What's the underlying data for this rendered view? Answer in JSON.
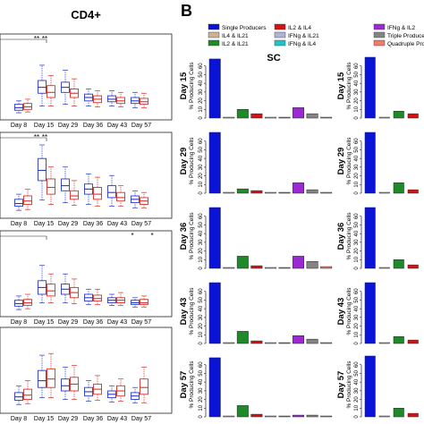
{
  "figure": {
    "panel_a_title": "CD4+",
    "panel_b_letter": "B",
    "panel_b_title": "SC",
    "ylabel": "% Producing Cells"
  },
  "legend": [
    {
      "label": "Single Producers",
      "color": "#0a14d8"
    },
    {
      "label": "IL4 & IL21",
      "color": "#c8b495"
    },
    {
      "label": "IL2 & IL21",
      "color": "#1f8a2a"
    },
    {
      "label": "IL2 & IL4",
      "color": "#d41414"
    },
    {
      "label": "IFNg & IL21",
      "color": "#aab5d8"
    },
    {
      "label": "IFNg & IL4",
      "color": "#22c2c8"
    },
    {
      "label": "IFNg & IL2",
      "color": "#9a2ad2"
    },
    {
      "label": "Triple Producers",
      "color": "#848484"
    },
    {
      "label": "Quadruple Producers",
      "color": "#f07c70"
    }
  ],
  "colors": {
    "blue_box": "#2a36c8",
    "red_box": "#d8302a"
  },
  "chart_data": [
    {
      "type": "box",
      "panel": "A",
      "title": "CD4+",
      "categories": [
        "Day 8",
        "Day 15",
        "Day 29",
        "Day 36",
        "Day 43",
        "Day 57"
      ],
      "rows": [
        {
          "significance": [
            "**",
            "**"
          ],
          "blue": [
            [
              0.2,
              0.5,
              0.8,
              1.2,
              1.6
            ],
            [
              1.0,
              2.5,
              3.2,
              4.0,
              5.8
            ],
            [
              1.2,
              2.6,
              3.2,
              3.8,
              5.2
            ],
            [
              1.0,
              1.6,
              2.0,
              2.4,
              3.0
            ],
            [
              1.0,
              1.5,
              1.8,
              2.2,
              2.8
            ],
            [
              0.8,
              1.3,
              1.6,
              2.0,
              2.6
            ]
          ],
          "red": [
            [
              0.3,
              0.6,
              0.9,
              1.3,
              1.8
            ],
            [
              1.0,
              2.0,
              2.6,
              3.4,
              4.6
            ],
            [
              1.0,
              2.0,
              2.5,
              3.0,
              4.2
            ],
            [
              0.9,
              1.4,
              1.8,
              2.2,
              2.8
            ],
            [
              0.9,
              1.3,
              1.6,
              2.0,
              2.6
            ],
            [
              0.8,
              1.2,
              1.5,
              1.9,
              2.5
            ]
          ]
        },
        {
          "significance": [
            "**",
            "**"
          ],
          "blue": [
            [
              0.3,
              0.8,
              1.1,
              1.6,
              2.2
            ],
            [
              1.5,
              3.8,
              5.0,
              6.4,
              8.0
            ],
            [
              1.2,
              2.6,
              3.2,
              4.0,
              5.4
            ],
            [
              1.0,
              2.2,
              2.8,
              3.4,
              4.6
            ],
            [
              0.8,
              1.8,
              2.4,
              3.2,
              4.4
            ],
            [
              0.6,
              1.2,
              1.6,
              2.0,
              2.6
            ]
          ],
          "red": [
            [
              0.4,
              1.0,
              1.4,
              2.0,
              2.8
            ],
            [
              1.0,
              2.2,
              3.0,
              4.0,
              5.4
            ],
            [
              0.9,
              1.6,
              2.0,
              2.6,
              3.8
            ],
            [
              0.8,
              1.6,
              2.2,
              3.0,
              4.2
            ],
            [
              0.8,
              1.4,
              1.8,
              2.4,
              3.2
            ],
            [
              0.6,
              1.0,
              1.4,
              1.8,
              2.4
            ]
          ]
        },
        {
          "significance": [
            "*",
            "*"
          ],
          "blue": [
            [
              0.2,
              0.6,
              0.9,
              1.3,
              1.8
            ],
            [
              1.0,
              2.0,
              2.8,
              3.6,
              5.4
            ],
            [
              1.0,
              2.0,
              2.6,
              3.2,
              4.4
            ],
            [
              0.8,
              1.2,
              1.6,
              2.0,
              2.6
            ],
            [
              0.7,
              1.0,
              1.3,
              1.6,
              2.0
            ],
            [
              0.5,
              0.8,
              1.0,
              1.3,
              1.6
            ]
          ],
          "red": [
            [
              0.3,
              0.7,
              1.0,
              1.4,
              2.0
            ],
            [
              1.0,
              1.8,
              2.4,
              3.2,
              4.4
            ],
            [
              0.9,
              1.6,
              2.2,
              2.8,
              3.8
            ],
            [
              0.8,
              1.2,
              1.5,
              1.9,
              2.6
            ],
            [
              0.7,
              1.0,
              1.3,
              1.6,
              2.2
            ],
            [
              0.5,
              0.8,
              1.0,
              1.4,
              1.8
            ]
          ]
        },
        {
          "significance": [],
          "blue": [
            [
              0.4,
              0.9,
              1.3,
              1.8,
              2.6
            ],
            [
              1.2,
              2.4,
              3.2,
              4.4,
              6.2
            ],
            [
              1.0,
              2.0,
              2.6,
              3.4,
              4.8
            ],
            [
              0.8,
              1.4,
              1.9,
              2.4,
              3.2
            ],
            [
              0.7,
              1.2,
              1.6,
              2.0,
              2.6
            ],
            [
              0.6,
              1.0,
              1.4,
              1.8,
              2.4
            ]
          ],
          "red": [
            [
              0.5,
              1.0,
              1.5,
              2.2,
              3.2
            ],
            [
              1.2,
              2.4,
              3.4,
              4.6,
              6.4
            ],
            [
              1.0,
              2.0,
              2.8,
              3.6,
              5.0
            ],
            [
              0.9,
              1.6,
              2.2,
              2.8,
              3.8
            ],
            [
              0.8,
              1.4,
              2.0,
              2.6,
              3.4
            ],
            [
              0.6,
              1.6,
              2.4,
              3.4,
              4.8
            ]
          ]
        }
      ]
    },
    {
      "type": "bar",
      "panel": "B",
      "title": "SC",
      "ylim": [
        0,
        70
      ],
      "yticks": [
        0,
        10,
        20,
        30,
        40,
        50,
        60
      ],
      "rows": [
        {
          "label": "Day 15",
          "sc": [
            68,
            1,
            10,
            5,
            1,
            1,
            12,
            5,
            1
          ],
          "right": [
            70,
            1,
            8,
            5
          ]
        },
        {
          "label": "Day 29",
          "sc": [
            70,
            1,
            5,
            3,
            1,
            1,
            12,
            4,
            1
          ],
          "right": [
            70,
            1,
            12,
            4
          ]
        },
        {
          "label": "Day 36",
          "sc": [
            70,
            1,
            14,
            3,
            1,
            1,
            14,
            8,
            2
          ],
          "right": [
            70,
            1,
            10,
            4
          ]
        },
        {
          "label": "Day 43",
          "sc": [
            70,
            1,
            14,
            3,
            1,
            1,
            9,
            5,
            1
          ],
          "right": [
            70,
            1,
            8,
            4
          ]
        },
        {
          "label": "Day 57",
          "sc": [
            68,
            1,
            13,
            3,
            1,
            1,
            2,
            2,
            1
          ],
          "right": [
            70,
            1,
            10,
            4
          ]
        }
      ]
    }
  ]
}
